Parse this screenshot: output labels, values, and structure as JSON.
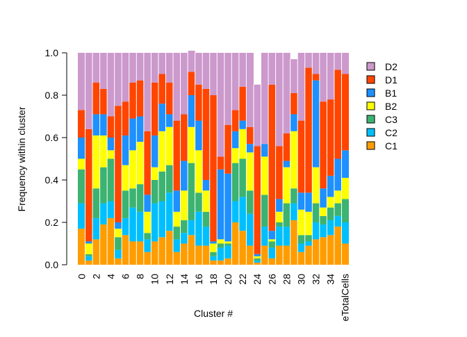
{
  "chart_data": {
    "type": "bar",
    "stacked": true,
    "xlabel": "Cluster #",
    "ylabel": "Frequency within cluster",
    "ylim": [
      0,
      1
    ],
    "yticks": [
      "0.0",
      "0.2",
      "0.4",
      "0.6",
      "0.8",
      "1.0"
    ],
    "categories": [
      "0",
      "1",
      "2",
      "3",
      "4",
      "5",
      "6",
      "7",
      "8",
      "9",
      "10",
      "11",
      "12",
      "13",
      "14",
      "15",
      "16",
      "17",
      "18",
      "19",
      "20",
      "21",
      "22",
      "23",
      "24",
      "25",
      "26",
      "27",
      "28",
      "29",
      "30",
      "31",
      "32",
      "33",
      "34",
      "35",
      "TotalCells"
    ],
    "xtick_labels": [
      "0",
      "2",
      "4",
      "6",
      "8",
      "10",
      "12",
      "14",
      "16",
      "18",
      "20",
      "22",
      "24",
      "26",
      "28",
      "30",
      "32",
      "34",
      "eTotalCells"
    ],
    "legend": {
      "position": "right",
      "order": [
        "D2",
        "D1",
        "B1",
        "B2",
        "C3",
        "C2",
        "C1"
      ]
    },
    "series": [
      {
        "name": "C1",
        "color": "#FF9D00",
        "values": [
          0.17,
          0.02,
          0.12,
          0.19,
          0.22,
          0.03,
          0.14,
          0.11,
          0.11,
          0.06,
          0.11,
          0.13,
          0.16,
          0.06,
          0.1,
          0.14,
          0.09,
          0.09,
          0.02,
          0.02,
          0.03,
          0.2,
          0.16,
          0.09,
          0.01,
          0.09,
          0.03,
          0.09,
          0.09,
          0.21,
          0.06,
          0.09,
          0.12,
          0.13,
          0.14,
          0.18,
          0.1
        ]
      },
      {
        "name": "C2",
        "color": "#00BFFF",
        "values": [
          0.12,
          0.02,
          0.1,
          0.1,
          0.08,
          0.04,
          0.08,
          0.16,
          0.14,
          0.06,
          0.18,
          0.17,
          0.18,
          0.06,
          0.05,
          0.07,
          0.16,
          0.09,
          0.02,
          0.06,
          0.06,
          0.1,
          0.16,
          0.15,
          0.01,
          0.09,
          0.05,
          0.09,
          0.09,
          0.08,
          0.04,
          0.02,
          0.08,
          0.06,
          0.07,
          0.05,
          0.1
        ]
      },
      {
        "name": "C3",
        "color": "#3CB371",
        "values": [
          0.16,
          0.01,
          0.14,
          0.17,
          0.2,
          0.06,
          0.13,
          0.09,
          0.13,
          0.03,
          0.11,
          0.14,
          0.13,
          0.06,
          0.06,
          0.27,
          0.09,
          0.07,
          0.02,
          0.02,
          0.01,
          0.18,
          0.18,
          0.11,
          0.01,
          0.15,
          0.03,
          0.02,
          0.11,
          0.07,
          0.04,
          0.03,
          0.09,
          0.04,
          0.06,
          0.06,
          0.11
        ]
      },
      {
        "name": "B2",
        "color": "#FFFF00",
        "values": [
          0.05,
          0.05,
          0.25,
          0.15,
          0.04,
          0.04,
          0.12,
          0.18,
          0.2,
          0.1,
          0.06,
          0.19,
          0.18,
          0.07,
          0.14,
          0.17,
          0.2,
          0.1,
          0.04,
          0.02,
          0.01,
          0.07,
          0.14,
          0.18,
          0.01,
          0.18,
          0.01,
          0.05,
          0.17,
          0.27,
          0.12,
          0.11,
          0.17,
          0.04,
          0.05,
          0.06,
          0.1
        ]
      },
      {
        "name": "B1",
        "color": "#1E90FF",
        "values": [
          0.1,
          0.01,
          0.1,
          0.1,
          0.06,
          0.03,
          0.14,
          0.15,
          0.12,
          0.08,
          0.15,
          0.13,
          0.06,
          0.1,
          0.14,
          0.15,
          0.14,
          0.05,
          0.01,
          0.33,
          0.32,
          0.08,
          0.04,
          0.04,
          0.01,
          0.06,
          0.04,
          0.06,
          0.03,
          0.08,
          0.08,
          0.09,
          0.41,
          0.09,
          0.1,
          0.15,
          0.13
        ]
      },
      {
        "name": "D1",
        "color": "#FF4500",
        "values": [
          0.13,
          0.53,
          0.15,
          0.12,
          0.1,
          0.55,
          0.16,
          0.17,
          0.17,
          0.3,
          0.25,
          0.14,
          0.15,
          0.33,
          0.22,
          0.11,
          0.17,
          0.43,
          0.69,
          0.06,
          0.23,
          0.1,
          0.16,
          0.08,
          0.51,
          0.0,
          0.69,
          0.25,
          0.13,
          0.1,
          0.34,
          0.59,
          0.03,
          0.41,
          0.36,
          0.42,
          0.36
        ]
      },
      {
        "name": "D2",
        "color": "#CC99CC",
        "values": [
          0.27,
          0.36,
          0.14,
          0.17,
          0.3,
          0.25,
          0.23,
          0.14,
          0.13,
          0.37,
          0.14,
          0.1,
          0.14,
          0.32,
          0.29,
          0.1,
          0.15,
          0.17,
          0.2,
          0.49,
          0.34,
          0.27,
          0.16,
          0.35,
          0.29,
          0.43,
          0.15,
          0.44,
          0.38,
          0.16,
          0.32,
          0.07,
          0.1,
          0.23,
          0.22,
          0.08,
          0.1
        ]
      }
    ]
  }
}
